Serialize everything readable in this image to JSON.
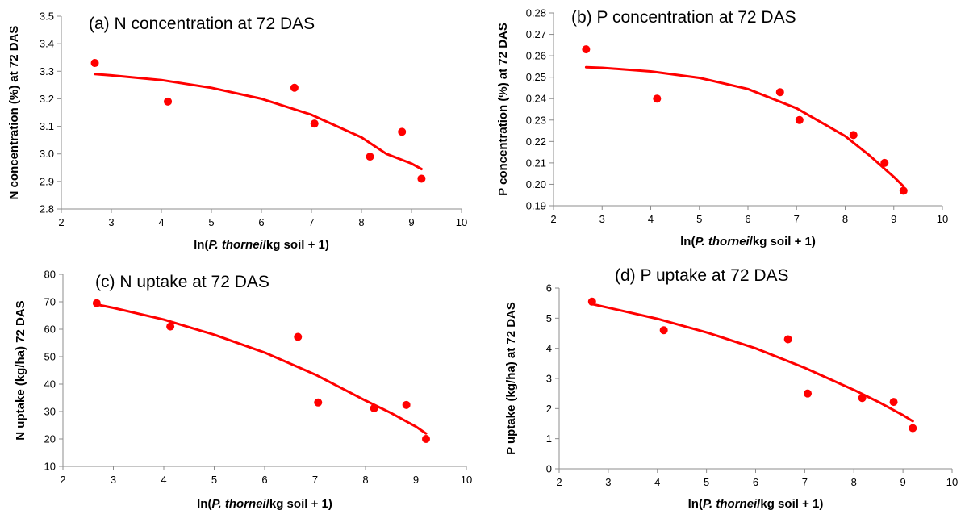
{
  "chart_data": [
    {
      "type": "scatter",
      "title": "(a) N concentration at 72 DAS",
      "ylabel": "N concentration (%) at  72 DAS",
      "xlabel_parts": [
        "ln(",
        "P. thornei",
        "/kg soil + 1)"
      ],
      "xlim": [
        2,
        10
      ],
      "ylim": [
        2.8,
        3.5
      ],
      "xticks": [
        2,
        3,
        4,
        5,
        6,
        7,
        8,
        9,
        10
      ],
      "yticks": [
        "2.8",
        "2.9",
        "3.0",
        "3.1",
        "3.2",
        "3.3",
        "3.4",
        "3.5"
      ],
      "points": [
        [
          2.67,
          3.33
        ],
        [
          4.13,
          3.19
        ],
        [
          6.66,
          3.24
        ],
        [
          7.06,
          3.11
        ],
        [
          8.17,
          2.99
        ],
        [
          8.81,
          3.08
        ],
        [
          9.2,
          2.91
        ]
      ],
      "trend": [
        [
          2.67,
          3.29
        ],
        [
          3.0,
          3.285
        ],
        [
          4.0,
          3.268
        ],
        [
          5.0,
          3.24
        ],
        [
          6.0,
          3.2
        ],
        [
          7.0,
          3.142
        ],
        [
          8.0,
          3.06
        ],
        [
          8.5,
          3.0
        ],
        [
          9.0,
          2.965
        ],
        [
          9.2,
          2.945
        ]
      ],
      "color": "#ff0000"
    },
    {
      "type": "scatter",
      "title": "(b)  P concentration  at 72 DAS",
      "ylabel": "P concentration (%) at 72 DAS",
      "xlabel_parts": [
        "ln(",
        "P. thornei",
        "/kg soil + 1)"
      ],
      "xlim": [
        2,
        10
      ],
      "ylim": [
        0.19,
        0.28
      ],
      "xticks": [
        2,
        3,
        4,
        5,
        6,
        7,
        8,
        9,
        10
      ],
      "yticks": [
        "0.19",
        "0.20",
        "0.21",
        "0.22",
        "0.23",
        "0.24",
        "0.25",
        "0.26",
        "0.27",
        "0.28"
      ],
      "points": [
        [
          2.67,
          0.263
        ],
        [
          4.13,
          0.24
        ],
        [
          6.66,
          0.243
        ],
        [
          7.06,
          0.23
        ],
        [
          8.17,
          0.223
        ],
        [
          8.81,
          0.21
        ],
        [
          9.2,
          0.197
        ]
      ],
      "trend": [
        [
          2.67,
          0.2547
        ],
        [
          3.0,
          0.2544
        ],
        [
          4.0,
          0.2527
        ],
        [
          5.0,
          0.2497
        ],
        [
          6.0,
          0.2445
        ],
        [
          7.0,
          0.2355
        ],
        [
          8.0,
          0.2225
        ],
        [
          8.5,
          0.2135
        ],
        [
          9.0,
          0.2035
        ],
        [
          9.2,
          0.199
        ]
      ],
      "color": "#ff0000"
    },
    {
      "type": "scatter",
      "title": "(c) N uptake at 72 DAS",
      "ylabel": "N uptake (kg/ha) 72 DAS",
      "xlabel_parts": [
        "ln(",
        "P. thornei",
        "/kg soil + 1)"
      ],
      "xlim": [
        2,
        10
      ],
      "ylim": [
        10,
        80
      ],
      "xticks": [
        2,
        3,
        4,
        5,
        6,
        7,
        8,
        9,
        10
      ],
      "yticks": [
        "10",
        "20",
        "30",
        "40",
        "50",
        "60",
        "70",
        "80"
      ],
      "points": [
        [
          2.67,
          69.5
        ],
        [
          4.13,
          61
        ],
        [
          6.66,
          57.2
        ],
        [
          7.06,
          33.3
        ],
        [
          8.17,
          31.2
        ],
        [
          8.81,
          32.4
        ],
        [
          9.2,
          20
        ]
      ],
      "trend": [
        [
          2.67,
          69.0
        ],
        [
          3.0,
          67.8
        ],
        [
          4.0,
          63.5
        ],
        [
          5.0,
          58.0
        ],
        [
          6.0,
          51.5
        ],
        [
          7.0,
          43.5
        ],
        [
          8.0,
          34.0
        ],
        [
          8.5,
          29.5
        ],
        [
          9.0,
          24.5
        ],
        [
          9.2,
          22.0
        ]
      ],
      "color": "#ff0000"
    },
    {
      "type": "scatter",
      "title": "(d)  P uptake at 72 DAS",
      "ylabel": "P uptake (kg/ha) at 72 DAS",
      "xlabel_parts": [
        "ln(",
        "P. thornei",
        "/kg soil + 1)"
      ],
      "xlim": [
        2,
        10
      ],
      "ylim": [
        0,
        6
      ],
      "xticks": [
        2,
        3,
        4,
        5,
        6,
        7,
        8,
        9,
        10
      ],
      "yticks": [
        "0",
        "1",
        "2",
        "3",
        "4",
        "5",
        "6"
      ],
      "points": [
        [
          2.67,
          5.55
        ],
        [
          4.13,
          4.6
        ],
        [
          6.66,
          4.3
        ],
        [
          7.06,
          2.5
        ],
        [
          8.17,
          2.35
        ],
        [
          8.81,
          2.22
        ],
        [
          9.2,
          1.35
        ]
      ],
      "trend": [
        [
          2.67,
          5.47
        ],
        [
          3.0,
          5.35
        ],
        [
          4.0,
          4.98
        ],
        [
          5.0,
          4.53
        ],
        [
          6.0,
          4.0
        ],
        [
          7.0,
          3.35
        ],
        [
          8.0,
          2.62
        ],
        [
          8.5,
          2.22
        ],
        [
          9.0,
          1.78
        ],
        [
          9.2,
          1.58
        ]
      ],
      "color": "#ff0000"
    }
  ]
}
